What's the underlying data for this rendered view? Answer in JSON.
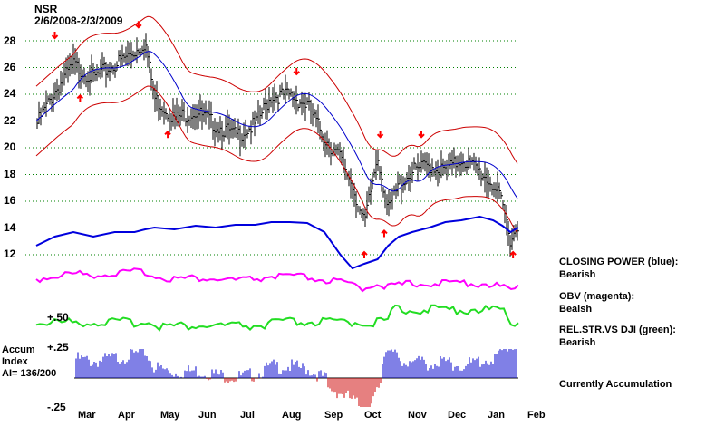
{
  "chart_data": {
    "type": "line",
    "title": "NSR",
    "subtitle": "2/6/2008-2/3/2009",
    "price_ticks": [
      28,
      26,
      24,
      22,
      20,
      18,
      16,
      14,
      12
    ],
    "month_labels": [
      "Mar",
      "Apr",
      "May",
      "Jun",
      "Jul",
      "Aug",
      "Sep",
      "Oct",
      "Nov",
      "Dec",
      "Jan",
      "Feb"
    ],
    "indicator_ticks": [
      "+.50",
      "+.25",
      "-.25"
    ],
    "accum_header": [
      "Accum",
      "Index",
      "AI= 136/200"
    ],
    "price": {
      "x": [
        "2008-02-06",
        "2008-02-20",
        "2008-03-05",
        "2008-03-20",
        "2008-04-05",
        "2008-04-20",
        "2008-04-28",
        "2008-05-05",
        "2008-05-20",
        "2008-06-05",
        "2008-06-20",
        "2008-07-05",
        "2008-07-20",
        "2008-08-01",
        "2008-08-15",
        "2008-08-28",
        "2008-09-10",
        "2008-09-22",
        "2008-10-01",
        "2008-10-10",
        "2008-10-20",
        "2008-10-28",
        "2008-11-05",
        "2008-11-15",
        "2008-11-28",
        "2008-12-10",
        "2008-12-22",
        "2009-01-05",
        "2009-01-15",
        "2009-01-22",
        "2009-01-28",
        "2009-02-03"
      ],
      "close": [
        22.0,
        24.5,
        26.5,
        25.5,
        26.5,
        27.5,
        28.2,
        24.0,
        22.5,
        23.0,
        22.0,
        21.2,
        22.0,
        24.2,
        24.2,
        23.5,
        21.0,
        19.5,
        17.5,
        14.5,
        19.8,
        15.5,
        17.5,
        18.5,
        19.0,
        18.5,
        19.5,
        18.5,
        17.5,
        16.0,
        13.5,
        14.5
      ]
    },
    "closing_power_blue": [
      13.0,
      14.0,
      14.5,
      14.0,
      14.5,
      14.5,
      14.8,
      15.0,
      14.8,
      15.2,
      15.0,
      15.3,
      15.3,
      15.6,
      15.6,
      15.5,
      14.5,
      12.0,
      10.5,
      11.0,
      11.5,
      13.0,
      14.0,
      14.5,
      15.0,
      15.6,
      15.8,
      16.2,
      15.8,
      15.2,
      14.5,
      15.0
    ],
    "signals": {
      "sell": [
        [
          "2008-02-20",
          28.2
        ],
        [
          "2008-04-23",
          29.0
        ],
        [
          "2008-08-20",
          25.5
        ],
        [
          "2008-10-22",
          20.8
        ],
        [
          "2008-11-22",
          20.8
        ]
      ],
      "buy": [
        [
          "2008-03-10",
          23.9
        ],
        [
          "2008-05-15",
          21.2
        ],
        [
          "2008-10-10",
          12.2
        ],
        [
          "2008-10-25",
          13.8
        ],
        [
          "2009-01-30",
          12.2
        ]
      ]
    },
    "legend": [
      {
        "label": "CLOSING POWER (blue):",
        "status": "Bearish",
        "color": "#0000dd"
      },
      {
        "label": "OBV (magenta):",
        "status": "Beaish",
        "color": "#ff00ff"
      },
      {
        "label": "REL.STR.VS DJI (green):",
        "status": "Bearish",
        "color": "#22dd22"
      }
    ],
    "accumulation_status": "Currently Accumulation",
    "colors": {
      "bands": "#cc0000",
      "ma": "#0000cc",
      "grid": "#008000",
      "bars": "#000000",
      "signal": "#ff0000",
      "obv": "#ff00ff",
      "relstr": "#22dd22",
      "accum_pos": "#0000cc",
      "accum_neg": "#cc0000"
    }
  }
}
